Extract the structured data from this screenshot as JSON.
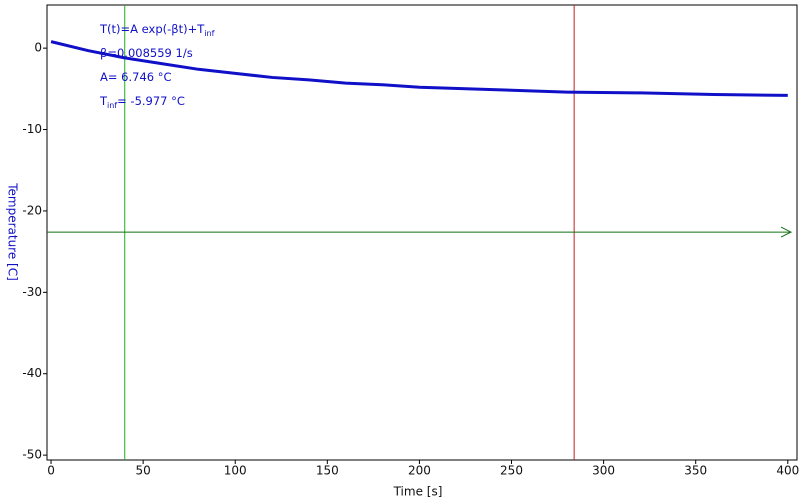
{
  "chart_data": {
    "type": "line",
    "x_label": "Time [s]",
    "y_label": "Temperature [C]",
    "x": [
      0,
      20,
      40,
      60,
      80,
      100,
      120,
      140,
      160,
      180,
      200,
      240,
      280,
      320,
      360,
      400
    ],
    "series": [
      {
        "color": "#1010c8",
        "values": [
          0.8,
          -0.3,
          -1.2,
          -1.9,
          -2.6,
          -3.1,
          -3.6,
          -3.9,
          -4.3,
          -4.5,
          -4.8,
          -5.1,
          -5.4,
          -5.5,
          -5.7,
          -5.8
        ]
      }
    ],
    "xlim": [
      -2.2,
      405
    ],
    "ylim": [
      -50.6,
      5.3
    ],
    "xticks": [
      0,
      50,
      100,
      150,
      200,
      250,
      300,
      350,
      400
    ],
    "yticks": [
      0,
      -10,
      -20,
      -30,
      -40,
      -50
    ],
    "annotations": [
      {
        "text": "T(t)=A exp(-βt)+T",
        "sub": "inf"
      },
      {
        "text": "β=0.008559 1/s"
      },
      {
        "text": "A= 6.746 °C"
      },
      {
        "text": "T",
        "sub": "inf",
        "rest": "= -5.977 °C"
      }
    ],
    "cursors": [
      {
        "axis": "x",
        "value": 40,
        "color": "#20b020"
      },
      {
        "axis": "x",
        "value": 284,
        "color": "#c02020"
      },
      {
        "axis": "y",
        "value": -22.6,
        "color": "#107010"
      }
    ]
  }
}
